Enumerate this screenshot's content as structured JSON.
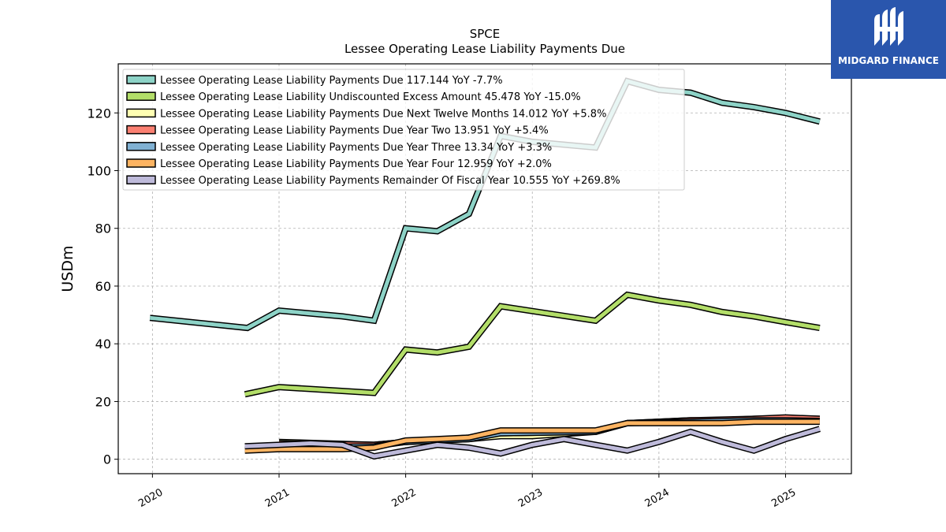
{
  "brand": {
    "name": "MIDGARD FINANCE",
    "bg_color": "#2a56ad",
    "icon": "midgard-logo-icon"
  },
  "chart_data": {
    "type": "line",
    "title": "SPCE",
    "subtitle": "Lessee Operating Lease Liability Payments Due",
    "ylabel": "USDm",
    "xlabel": "",
    "ylim": [
      -5,
      137
    ],
    "xlim": [
      2019.73,
      2025.52
    ],
    "yticks": [
      0,
      20,
      40,
      60,
      80,
      100,
      120
    ],
    "xticks": [
      2020,
      2021,
      2022,
      2023,
      2024,
      2025
    ],
    "grid": true,
    "legend_position": "top-left",
    "series": [
      {
        "name": "Lessee Operating Lease Liability Payments Due",
        "legend_label": "Lessee Operating Lease Liability Payments Due  117.144 YoY -7.7%",
        "color": "#8dd3c7",
        "x": [
          2019.98,
          2020.75,
          2021.0,
          2021.5,
          2021.75,
          2022.0,
          2022.25,
          2022.5,
          2022.75,
          2023.0,
          2023.5,
          2023.75,
          2024.0,
          2024.25,
          2024.5,
          2024.75,
          2025.0,
          2025.27
        ],
        "y": [
          49,
          45.5,
          51.5,
          49.5,
          48,
          80,
          79,
          85,
          112,
          110,
          108,
          131,
          128,
          127,
          123.5,
          122,
          120,
          117
        ]
      },
      {
        "name": "Lessee Operating Lease Liability Undiscounted Excess Amount",
        "legend_label": "Lessee Operating Lease Liability Undiscounted Excess Amount  45.478 YoY -15.0%",
        "color": "#b3de69",
        "x": [
          2020.73,
          2021.0,
          2021.75,
          2022.0,
          2022.25,
          2022.5,
          2022.75,
          2023.5,
          2023.75,
          2024.0,
          2024.25,
          2024.5,
          2024.75,
          2025.0,
          2025.27
        ],
        "y": [
          22.5,
          25,
          23,
          38,
          37,
          39,
          53,
          48,
          57,
          55,
          53.5,
          51,
          49.5,
          47.5,
          45.5
        ]
      },
      {
        "name": "Lessee Operating Lease Liability Payments Due Next Twelve Months",
        "legend_label": "Lessee Operating Lease Liability Payments Due Next Twelve Months  14.012 YoY +5.8%",
        "color": "#ffffb3",
        "x": [
          2021.0,
          2021.75,
          2022.0,
          2022.5,
          2022.75,
          2023.0,
          2023.5,
          2023.75,
          2024.0,
          2024.25,
          2024.5,
          2024.75,
          2025.0,
          2025.27
        ],
        "y": [
          6,
          5,
          6,
          7,
          8,
          8,
          9.5,
          12.5,
          13,
          13.5,
          13.5,
          14,
          14.2,
          14
        ]
      },
      {
        "name": "Lessee Operating Lease Liability Payments Due Year Two",
        "legend_label": "Lessee Operating Lease Liability Payments Due Year Two  13.951 YoY +5.4%",
        "color": "#fb8072",
        "x": [
          2021.0,
          2021.75,
          2022.0,
          2022.5,
          2022.75,
          2023.5,
          2023.75,
          2024.25,
          2024.75,
          2025.0,
          2025.27
        ],
        "y": [
          5.5,
          5,
          6,
          7.5,
          9,
          9.5,
          12.5,
          13.5,
          14,
          14.5,
          14
        ]
      },
      {
        "name": "Lessee Operating Lease Liability Payments Due Year Three",
        "legend_label": "Lessee Operating Lease Liability Payments Due Year Three  13.34 YoY +3.3%",
        "color": "#80b1d3",
        "x": [
          2021.0,
          2021.75,
          2022.0,
          2022.5,
          2022.75,
          2023.5,
          2023.75,
          2024.25,
          2024.75,
          2025.0,
          2025.27
        ],
        "y": [
          4,
          4.5,
          6,
          7,
          9,
          9.5,
          12.5,
          13,
          13.5,
          13.5,
          13.3
        ]
      },
      {
        "name": "Lessee Operating Lease Liability Payments Due Year Four",
        "legend_label": "Lessee Operating Lease Liability Payments Due Year Four  12.959 YoY +2.0%",
        "color": "#fdb462",
        "x": [
          2020.73,
          2021.0,
          2021.5,
          2021.75,
          2022.0,
          2022.25,
          2022.5,
          2022.75,
          2023.0,
          2023.5,
          2023.75,
          2024.0,
          2024.5,
          2024.75,
          2025.0,
          2025.27
        ],
        "y": [
          3,
          3.5,
          3.5,
          4,
          6.5,
          7,
          7.5,
          10,
          10,
          10,
          12.5,
          12.5,
          12.5,
          13,
          13,
          13
        ]
      },
      {
        "name": "Lessee Operating Lease Liability Payments Remainder Of Fiscal Year",
        "legend_label": "Lessee Operating Lease Liability Payments Remainder Of Fiscal Year  10.555 YoY +269.8%",
        "color": "#bebada",
        "x": [
          2020.73,
          2021.0,
          2021.25,
          2021.5,
          2021.75,
          2022.0,
          2022.25,
          2022.5,
          2022.75,
          2023.0,
          2023.25,
          2023.5,
          2023.75,
          2024.0,
          2024.25,
          2024.5,
          2024.75,
          2025.0,
          2025.27
        ],
        "y": [
          4.5,
          5,
          5.5,
          5,
          1,
          3,
          5,
          4,
          2,
          5,
          7,
          5,
          3,
          6,
          9.5,
          6,
          3,
          7,
          10.5
        ]
      }
    ]
  }
}
